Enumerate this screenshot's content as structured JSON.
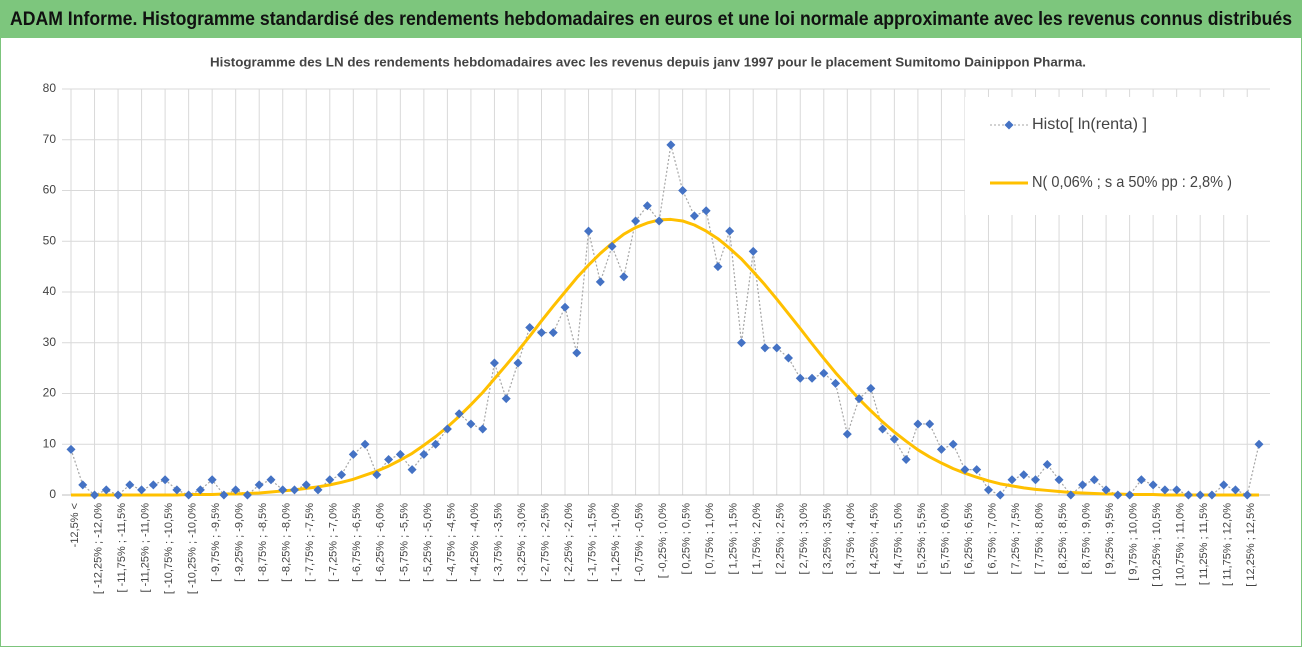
{
  "header": {
    "title": "ADAM Informe. Histogramme standardisé des rendements hebdomadaires en euros et une loi normale approximante avec les revenus connus distribués"
  },
  "chart_data": {
    "type": "line",
    "title": "Histogramme des LN des rendements hebdomadaires avec les revenus depuis janv 1997 pour le placement Sumitomo Dainippon Pharma.",
    "categories": [
      "-12,5% <",
      null,
      "[ -12,25% ; -12,0%",
      null,
      "[ -11,75% ; -11,5%",
      null,
      "[ -11,25% ; -11,0%",
      null,
      "[ -10,75% ; -10,5%",
      null,
      "[ -10,25% ; -10,0%",
      null,
      "[ -9,75% ; -9,5%",
      null,
      "[ -9,25% ; -9,0%",
      null,
      "[ -8,75% ; -8,5%",
      null,
      "[ -8,25% ; -8,0%",
      null,
      "[ -7,75% ; -7,5%",
      null,
      "[ -7,25% ; -7,0%",
      null,
      "[ -6,75% ; -6,5%",
      null,
      "[ -6,25% ; -6,0%",
      null,
      "[ -5,75% ; -5,5%",
      null,
      "[ -5,25% ; -5,0%",
      null,
      "[ -4,75% ; -4,5%",
      null,
      "[ -4,25% ; -4,0%",
      null,
      "[ -3,75% ; -3,5%",
      null,
      "[ -3,25% ; -3,0%",
      null,
      "[ -2,75% ; -2,5%",
      null,
      "[ -2,25% ; -2,0%",
      null,
      "[ -1,75% ; -1,5%",
      null,
      "[ -1,25% ; -1,0%",
      null,
      "[ -0,75% ; -0,5%",
      null,
      "[ -0,25% ; 0,0%",
      null,
      "[ 0,25% ; 0,5%",
      null,
      "[ 0,75% ; 1,0%",
      null,
      "[ 1,25% ; 1,5%",
      null,
      "[ 1,75% ; 2,0%",
      null,
      "[ 2,25% ; 2,5%",
      null,
      "[ 2,75% ; 3,0%",
      null,
      "[ 3,25% ; 3,5%",
      null,
      "[ 3,75% ; 4,0%",
      null,
      "[ 4,25% ; 4,5%",
      null,
      "[ 4,75% ; 5,0%",
      null,
      "[ 5,25% ; 5,5%",
      null,
      "[ 5,75% ; 6,0%",
      null,
      "[ 6,25% ; 6,5%",
      null,
      "[ 6,75% ; 7,0%",
      null,
      "[ 7,25% ; 7,5%",
      null,
      "[ 7,75% ; 8,0%",
      null,
      "[ 8,25% ; 8,5%",
      null,
      "[ 8,75% ; 9,0%",
      null,
      "[ 9,25% ; 9,5%",
      null,
      "[ 9,75% ; 10,0%",
      null,
      "[ 10,25% ; 10,5%",
      null,
      "[ 10,75% ; 11,0%",
      null,
      "[ 11,25% ; 11,5%",
      null,
      "[ 11,75% ; 12,0%",
      null,
      "[ 12,25% ; 12,5%",
      null
    ],
    "series": [
      {
        "name": "Histo[ ln(renta) ]",
        "color": "#4472c4",
        "values": [
          9,
          2,
          0,
          1,
          0,
          2,
          1,
          2,
          3,
          1,
          0,
          1,
          3,
          0,
          1,
          0,
          2,
          3,
          1,
          1,
          2,
          1,
          3,
          4,
          8,
          10,
          4,
          7,
          8,
          5,
          8,
          10,
          13,
          16,
          14,
          13,
          26,
          19,
          26,
          33,
          32,
          32,
          37,
          28,
          52,
          42,
          49,
          43,
          54,
          57,
          54,
          69,
          60,
          55,
          56,
          45,
          52,
          30,
          48,
          29,
          29,
          27,
          23,
          23,
          24,
          22,
          12,
          19,
          21,
          13,
          11,
          7,
          14,
          14,
          9,
          10,
          5,
          5,
          1,
          0,
          3,
          4,
          3,
          6,
          3,
          0,
          2,
          3,
          1,
          0,
          0,
          3,
          2,
          1,
          1,
          0,
          0,
          0,
          2,
          1,
          0,
          10
        ]
      },
      {
        "name": "N( 0,06% ; s a 50% pp : 2,8% )",
        "color": "#ffc000",
        "values": [
          0,
          0,
          0,
          0,
          0,
          0,
          0,
          0,
          0,
          0,
          0.1,
          0.1,
          0.1,
          0.2,
          0.2,
          0.3,
          0.4,
          0.6,
          0.8,
          1.0,
          1.3,
          1.6,
          2.0,
          2.5,
          3.1,
          3.9,
          4.7,
          5.7,
          6.9,
          8.2,
          9.8,
          11.5,
          13.4,
          15.5,
          17.8,
          20.2,
          22.9,
          25.6,
          28.4,
          31.3,
          34.3,
          37.2,
          40.0,
          42.8,
          45.3,
          47.6,
          49.6,
          51.4,
          52.7,
          53.6,
          54.2,
          54.3,
          54.0,
          53.2,
          52.0,
          50.5,
          48.6,
          46.5,
          44.0,
          41.4,
          38.6,
          35.7,
          32.8,
          29.8,
          26.9,
          24.1,
          21.5,
          18.9,
          16.6,
          14.4,
          12.4,
          10.6,
          8.9,
          7.5,
          6.3,
          5.2,
          4.3,
          3.5,
          2.8,
          2.2,
          1.8,
          1.4,
          1.1,
          0.9,
          0.7,
          0.5,
          0.4,
          0.3,
          0.2,
          0.2,
          0.1,
          0.1,
          0.1,
          0,
          0,
          0,
          0,
          0,
          0,
          0,
          0,
          0
        ]
      }
    ],
    "ylim": [
      0,
      80
    ],
    "yticks": [
      0,
      10,
      20,
      30,
      40,
      50,
      60,
      70,
      80
    ],
    "grid": true,
    "legend": "top-right"
  }
}
